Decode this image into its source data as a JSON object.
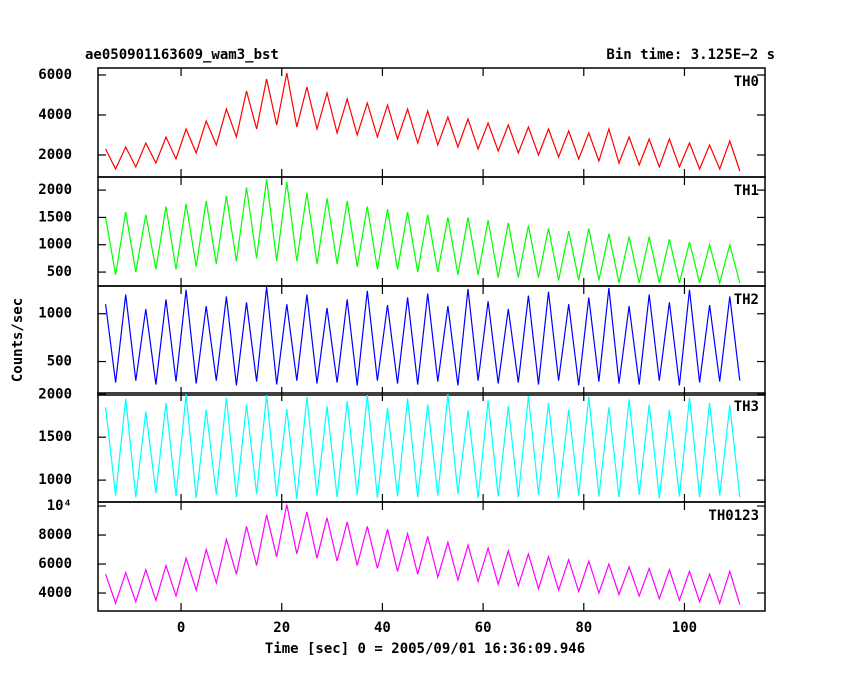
{
  "chart_data": [
    {
      "type": "line",
      "title": "ae050901163609_wam3_bst",
      "subtitle": "Bin time: 3.125E−2 s",
      "x": [
        -15,
        -13,
        -11,
        -9,
        -7,
        -5,
        -3,
        -1,
        1,
        3,
        5,
        7,
        9,
        11,
        13,
        15,
        17,
        19,
        21,
        23,
        25,
        27,
        29,
        31,
        33,
        35,
        37,
        39,
        41,
        43,
        45,
        47,
        49,
        51,
        53,
        55,
        57,
        59,
        61,
        63,
        65,
        67,
        69,
        71,
        73,
        75,
        77,
        79,
        81,
        83,
        85,
        87,
        89,
        91,
        93,
        95,
        97,
        99,
        101,
        103,
        105,
        107,
        109,
        111
      ],
      "xlim": [
        -16.5,
        116
      ],
      "xticks": [
        0,
        20,
        40,
        60,
        80,
        100
      ],
      "ylim": [
        900,
        6350
      ],
      "yticks": [
        2000,
        4000,
        6000
      ],
      "series": [
        {
          "name": "TH0",
          "color": "#ff0000",
          "values": [
            2300,
            1300,
            2400,
            1400,
            2600,
            1600,
            2900,
            1800,
            3300,
            2100,
            3700,
            2500,
            4300,
            2900,
            5200,
            3300,
            5800,
            3500,
            6100,
            3400,
            5400,
            3300,
            5100,
            3100,
            4800,
            3000,
            4600,
            2900,
            4500,
            2800,
            4300,
            2600,
            4200,
            2500,
            3900,
            2400,
            3800,
            2300,
            3600,
            2200,
            3500,
            2100,
            3400,
            2000,
            3300,
            1900,
            3200,
            1800,
            3100,
            1700,
            3300,
            1600,
            2900,
            1500,
            2800,
            1400,
            2800,
            1400,
            2600,
            1300,
            2500,
            1300,
            2700,
            1200
          ]
        }
      ]
    },
    {
      "type": "line",
      "x": [
        -15,
        -13,
        -11,
        -9,
        -7,
        -5,
        -3,
        -1,
        1,
        3,
        5,
        7,
        9,
        11,
        13,
        15,
        17,
        19,
        21,
        23,
        25,
        27,
        29,
        31,
        33,
        35,
        37,
        39,
        41,
        43,
        45,
        47,
        49,
        51,
        53,
        55,
        57,
        59,
        61,
        63,
        65,
        67,
        69,
        71,
        73,
        75,
        77,
        79,
        81,
        83,
        85,
        87,
        89,
        91,
        93,
        95,
        97,
        99,
        101,
        103,
        105,
        107,
        109,
        111
      ],
      "xlim": [
        -16.5,
        116
      ],
      "xticks": [
        0,
        20,
        40,
        60,
        80,
        100
      ],
      "ylim": [
        245,
        2240
      ],
      "yticks": [
        500,
        1000,
        1500,
        2000
      ],
      "series": [
        {
          "name": "TH1",
          "color": "#00ff00",
          "values": [
            1500,
            450,
            1600,
            500,
            1550,
            550,
            1700,
            550,
            1750,
            600,
            1800,
            650,
            1900,
            700,
            2050,
            750,
            2200,
            700,
            2150,
            700,
            1950,
            650,
            1850,
            650,
            1800,
            600,
            1700,
            550,
            1650,
            550,
            1600,
            500,
            1550,
            500,
            1500,
            450,
            1500,
            450,
            1450,
            400,
            1400,
            400,
            1350,
            400,
            1300,
            350,
            1250,
            350,
            1300,
            350,
            1200,
            300,
            1150,
            300,
            1150,
            300,
            1100,
            300,
            1050,
            300,
            1000,
            300,
            1000,
            300
          ]
        }
      ]
    },
    {
      "type": "line",
      "ylabel": "Counts/sec",
      "x": [
        -15,
        -13,
        -11,
        -9,
        -7,
        -5,
        -3,
        -1,
        1,
        3,
        5,
        7,
        9,
        11,
        13,
        15,
        17,
        19,
        21,
        23,
        25,
        27,
        29,
        31,
        33,
        35,
        37,
        39,
        41,
        43,
        45,
        47,
        49,
        51,
        53,
        55,
        57,
        59,
        61,
        63,
        65,
        67,
        69,
        71,
        73,
        75,
        77,
        79,
        81,
        83,
        85,
        87,
        89,
        91,
        93,
        95,
        97,
        99,
        101,
        103,
        105,
        107,
        109,
        111
      ],
      "xlim": [
        -16.5,
        116
      ],
      "xticks": [
        0,
        20,
        40,
        60,
        80,
        100
      ],
      "ylim": [
        150,
        1290
      ],
      "yticks": [
        500,
        1000
      ],
      "series": [
        {
          "name": "TH2",
          "color": "#0000ff",
          "values": [
            1100,
            280,
            1200,
            300,
            1050,
            260,
            1150,
            290,
            1250,
            270,
            1080,
            300,
            1180,
            250,
            1120,
            290,
            1280,
            260,
            1100,
            300,
            1200,
            270,
            1060,
            280,
            1150,
            250,
            1240,
            300,
            1090,
            270,
            1170,
            260,
            1210,
            290,
            1080,
            250,
            1260,
            300,
            1130,
            270,
            1050,
            280,
            1190,
            260,
            1230,
            300,
            1100,
            250,
            1170,
            290,
            1270,
            270,
            1080,
            260,
            1200,
            300,
            1120,
            250,
            1250,
            280,
            1090,
            290,
            1180,
            300
          ]
        }
      ]
    },
    {
      "type": "line",
      "x": [
        -15,
        -13,
        -11,
        -9,
        -7,
        -5,
        -3,
        -1,
        1,
        3,
        5,
        7,
        9,
        11,
        13,
        15,
        17,
        19,
        21,
        23,
        25,
        27,
        29,
        31,
        33,
        35,
        37,
        39,
        41,
        43,
        45,
        47,
        49,
        51,
        53,
        55,
        57,
        59,
        61,
        63,
        65,
        67,
        69,
        71,
        73,
        75,
        77,
        79,
        81,
        83,
        85,
        87,
        89,
        91,
        93,
        95,
        97,
        99,
        101,
        103,
        105,
        107,
        109,
        111
      ],
      "xlim": [
        -16.5,
        116
      ],
      "xticks": [
        0,
        20,
        40,
        60,
        80,
        100
      ],
      "ylim": [
        745,
        2015
      ],
      "yticks": [
        1000,
        1500,
        2000
      ],
      "series": [
        {
          "name": "TH3",
          "color": "#00ffff",
          "values": [
            1850,
            820,
            1950,
            800,
            1800,
            850,
            1900,
            810,
            2000,
            790,
            1820,
            830,
            1960,
            800,
            1880,
            840,
            1990,
            810,
            1830,
            780,
            1970,
            820,
            1860,
            800,
            1920,
            830,
            1990,
            790,
            1840,
            810,
            1950,
            800,
            1880,
            820,
            2000,
            840,
            1810,
            790,
            1930,
            810,
            1860,
            800,
            1980,
            830,
            1900,
            790,
            1820,
            820,
            1970,
            810,
            1850,
            800,
            1940,
            830,
            1880,
            790,
            1820,
            810,
            1960,
            800,
            1900,
            820,
            1870,
            800
          ]
        }
      ]
    },
    {
      "type": "line",
      "xlabel": "Time [sec] 0 = 2005/09/01 16:36:09.946",
      "x": [
        -15,
        -13,
        -11,
        -9,
        -7,
        -5,
        -3,
        -1,
        1,
        3,
        5,
        7,
        9,
        11,
        13,
        15,
        17,
        19,
        21,
        23,
        25,
        27,
        29,
        31,
        33,
        35,
        37,
        39,
        41,
        43,
        45,
        47,
        49,
        51,
        53,
        55,
        57,
        59,
        61,
        63,
        65,
        67,
        69,
        71,
        73,
        75,
        77,
        79,
        81,
        83,
        85,
        87,
        89,
        91,
        93,
        95,
        97,
        99,
        101,
        103,
        105,
        107,
        109,
        111
      ],
      "xlim": [
        -16.5,
        116
      ],
      "xticks": [
        0,
        20,
        40,
        60,
        80,
        100
      ],
      "ylim": [
        2760,
        10280
      ],
      "yticks": [
        4000,
        6000,
        8000,
        {
          "value": 10000,
          "label": "10⁴"
        }
      ],
      "series": [
        {
          "name": "TH0123",
          "color": "#ff00ff",
          "values": [
            5300,
            3300,
            5400,
            3400,
            5600,
            3500,
            5900,
            3800,
            6400,
            4200,
            7000,
            4700,
            7700,
            5300,
            8600,
            5900,
            9400,
            6500,
            10100,
            6700,
            9600,
            6400,
            9200,
            6200,
            8900,
            5900,
            8600,
            5700,
            8400,
            5500,
            8100,
            5300,
            7900,
            5100,
            7500,
            4900,
            7300,
            4800,
            7100,
            4600,
            6900,
            4500,
            6700,
            4300,
            6500,
            4200,
            6300,
            4100,
            6200,
            4000,
            6000,
            3900,
            5800,
            3800,
            5700,
            3600,
            5600,
            3500,
            5500,
            3400,
            5300,
            3300,
            5500,
            3200
          ]
        }
      ]
    }
  ]
}
